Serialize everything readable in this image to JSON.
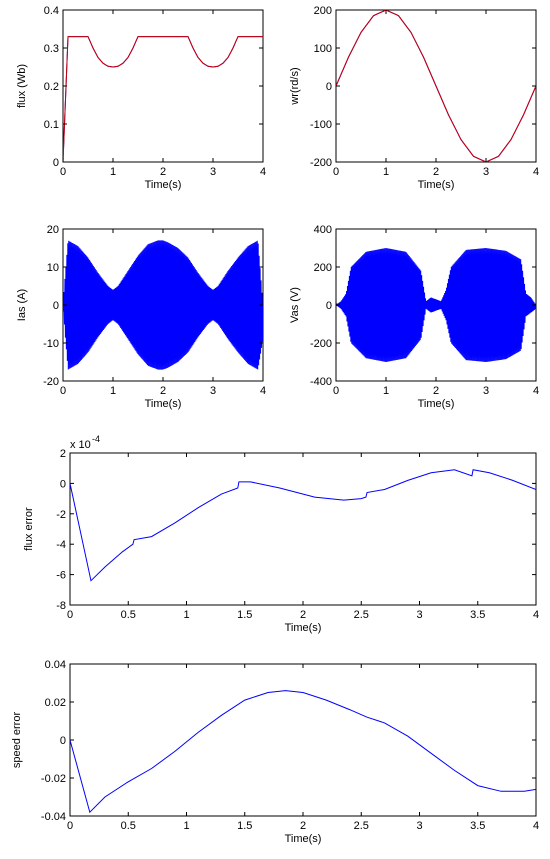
{
  "colors": {
    "blue": "#0000ff",
    "red": "#cc0000",
    "axis": "#000000"
  },
  "chart_data": [
    {
      "id": "flux",
      "type": "line",
      "xlabel": "Time(s)",
      "ylabel": "flux (Wb)",
      "xlim": [
        0,
        4
      ],
      "ylim": [
        0,
        0.4
      ],
      "xticks": [
        0,
        1,
        2,
        3,
        4
      ],
      "xtick_labels": [
        "0",
        "1",
        "2",
        "3",
        "4"
      ],
      "yticks": [
        0,
        0.1,
        0.2,
        0.3,
        0.4
      ],
      "ytick_labels": [
        "0",
        "0.1",
        "0.2",
        "0.3",
        "0.4"
      ],
      "grid": false,
      "series": [
        {
          "color": "blue",
          "x": [
            0,
            0.1,
            0.5,
            0.6,
            0.7,
            0.8,
            0.9,
            1.0,
            1.1,
            1.2,
            1.3,
            1.4,
            1.5,
            2.5,
            2.6,
            2.7,
            2.8,
            2.9,
            3.0,
            3.1,
            3.2,
            3.3,
            3.4,
            3.5,
            4.0
          ],
          "y": [
            0,
            0.33,
            0.33,
            0.3,
            0.275,
            0.26,
            0.252,
            0.25,
            0.252,
            0.26,
            0.275,
            0.3,
            0.33,
            0.33,
            0.3,
            0.275,
            0.26,
            0.252,
            0.25,
            0.252,
            0.26,
            0.275,
            0.3,
            0.33,
            0.33
          ]
        },
        {
          "color": "red",
          "x": [
            0,
            0.1,
            0.5,
            0.6,
            0.7,
            0.8,
            0.9,
            1.0,
            1.1,
            1.2,
            1.3,
            1.4,
            1.5,
            2.5,
            2.6,
            2.7,
            2.8,
            2.9,
            3.0,
            3.1,
            3.2,
            3.3,
            3.4,
            3.5,
            4.0
          ],
          "y": [
            0,
            0.33,
            0.33,
            0.3,
            0.275,
            0.26,
            0.252,
            0.25,
            0.252,
            0.26,
            0.275,
            0.3,
            0.33,
            0.33,
            0.3,
            0.275,
            0.26,
            0.252,
            0.25,
            0.252,
            0.26,
            0.275,
            0.3,
            0.33,
            0.33
          ]
        }
      ]
    },
    {
      "id": "speed",
      "type": "line",
      "xlabel": "Time(s)",
      "ylabel": "wr(rd/s)",
      "xlim": [
        0,
        4
      ],
      "ylim": [
        -200,
        200
      ],
      "xticks": [
        0,
        1,
        2,
        3,
        4
      ],
      "xtick_labels": [
        "0",
        "1",
        "2",
        "3",
        "4"
      ],
      "yticks": [
        -200,
        -100,
        0,
        100,
        200
      ],
      "ytick_labels": [
        "-200",
        "-100",
        "0",
        "100",
        "200"
      ],
      "grid": false,
      "series": [
        {
          "color": "blue",
          "x": [
            0,
            0.25,
            0.5,
            0.75,
            1.0,
            1.25,
            1.5,
            1.75,
            2.0,
            2.25,
            2.5,
            2.75,
            3.0,
            3.25,
            3.5,
            3.75,
            4.0
          ],
          "y": [
            0,
            76,
            141,
            185,
            200,
            185,
            141,
            76,
            0,
            -76,
            -141,
            -185,
            -200,
            -185,
            -141,
            -76,
            0
          ]
        },
        {
          "color": "red",
          "x": [
            0,
            0.25,
            0.5,
            0.75,
            1.0,
            1.25,
            1.5,
            1.75,
            2.0,
            2.25,
            2.5,
            2.75,
            3.0,
            3.25,
            3.5,
            3.75,
            4.0
          ],
          "y": [
            0,
            76,
            141,
            185,
            200,
            185,
            141,
            76,
            0,
            -76,
            -141,
            -185,
            -200,
            -185,
            -141,
            -76,
            0
          ]
        }
      ]
    },
    {
      "id": "current",
      "type": "line",
      "xlabel": "Time(s)",
      "ylabel": "Ias (A)",
      "xlim": [
        0,
        4
      ],
      "ylim": [
        -20,
        20
      ],
      "xticks": [
        0,
        1,
        2,
        3,
        4
      ],
      "xtick_labels": [
        "0",
        "1",
        "2",
        "3",
        "4"
      ],
      "yticks": [
        -20,
        -10,
        0,
        10,
        20
      ],
      "ytick_labels": [
        "-20",
        "-10",
        "0",
        "10",
        "20"
      ],
      "grid": false,
      "envelope": {
        "x": [
          0,
          0.05,
          0.1,
          0.3,
          0.5,
          0.7,
          0.9,
          1.0,
          1.1,
          1.3,
          1.5,
          1.7,
          1.9,
          2.0,
          2.1,
          2.3,
          2.5,
          2.7,
          2.9,
          3.0,
          3.1,
          3.3,
          3.5,
          3.7,
          3.9,
          4.0
        ],
        "upper": [
          0,
          9,
          17,
          15.5,
          12.5,
          8.5,
          5,
          4,
          5,
          9,
          13,
          16,
          17,
          17,
          16.5,
          15,
          12.5,
          8.5,
          5,
          4,
          5,
          9,
          12.5,
          15.5,
          17,
          0
        ],
        "lower": [
          0,
          -9,
          -17,
          -15.5,
          -12.5,
          -8.5,
          -5,
          -4,
          -5,
          -9,
          -13,
          -16,
          -17,
          -17,
          -16.5,
          -15,
          -12.5,
          -8.5,
          -5,
          -4,
          -5,
          -9,
          -12.5,
          -15.5,
          -17,
          -9
        ]
      },
      "series": [
        {
          "color": "blue"
        }
      ]
    },
    {
      "id": "voltage",
      "type": "line",
      "xlabel": "Time(s)",
      "ylabel": "Vas (V)",
      "xlim": [
        0,
        4
      ],
      "ylim": [
        -400,
        400
      ],
      "xticks": [
        0,
        1,
        2,
        3,
        4
      ],
      "xtick_labels": [
        "0",
        "1",
        "2",
        "3",
        "4"
      ],
      "yticks": [
        -400,
        -200,
        0,
        200,
        400
      ],
      "ytick_labels": [
        "-400",
        "-200",
        "0",
        "200",
        "400"
      ],
      "grid": false,
      "envelope": {
        "x": [
          0,
          0.1,
          0.2,
          0.3,
          0.6,
          1.0,
          1.4,
          1.7,
          1.8,
          1.9,
          2.0,
          2.1,
          2.2,
          2.3,
          2.6,
          3.0,
          3.4,
          3.7,
          3.8,
          3.9,
          4.0
        ],
        "upper": [
          0,
          20,
          60,
          200,
          280,
          300,
          280,
          180,
          20,
          40,
          30,
          20,
          80,
          200,
          290,
          300,
          285,
          240,
          60,
          40,
          0
        ],
        "lower": [
          0,
          -20,
          -60,
          -200,
          -280,
          -300,
          -280,
          -180,
          -20,
          -40,
          -30,
          -20,
          -80,
          -200,
          -290,
          -300,
          -285,
          -240,
          -60,
          -40,
          -20
        ]
      },
      "series": [
        {
          "color": "blue"
        }
      ]
    },
    {
      "id": "flux_error",
      "type": "line",
      "xlabel": "Time(s)",
      "ylabel": "flux error",
      "multiplier_label": "x 10",
      "multiplier_exponent": "-4",
      "xlim": [
        0,
        4
      ],
      "ylim": [
        -8,
        2
      ],
      "xticks": [
        0,
        0.5,
        1,
        1.5,
        2,
        2.5,
        3,
        3.5,
        4
      ],
      "xtick_labels": [
        "0",
        "0.5",
        "1",
        "1.5",
        "2",
        "2.5",
        "3",
        "3.5",
        "4"
      ],
      "yticks": [
        -8,
        -6,
        -4,
        -2,
        0,
        2
      ],
      "ytick_labels": [
        "-8",
        "-6",
        "-4",
        "-2",
        "0",
        "2"
      ],
      "grid": false,
      "series": [
        {
          "color": "blue",
          "x": [
            0,
            0.18,
            0.3,
            0.45,
            0.54,
            0.55,
            0.7,
            0.9,
            1.1,
            1.3,
            1.44,
            1.45,
            1.55,
            1.8,
            2.1,
            2.35,
            2.5,
            2.54,
            2.55,
            2.7,
            2.9,
            3.1,
            3.3,
            3.45,
            3.46,
            3.6,
            3.8,
            4.0
          ],
          "y": [
            0,
            -6.4,
            -5.5,
            -4.5,
            -4.0,
            -3.7,
            -3.5,
            -2.6,
            -1.6,
            -0.7,
            -0.3,
            0.1,
            0.1,
            -0.3,
            -0.9,
            -1.1,
            -1.0,
            -0.9,
            -0.6,
            -0.4,
            0.2,
            0.7,
            0.9,
            0.5,
            0.9,
            0.7,
            0.2,
            -0.4
          ]
        }
      ]
    },
    {
      "id": "speed_error",
      "type": "line",
      "xlabel": "Time(s)",
      "ylabel": "speed error",
      "xlim": [
        0,
        4
      ],
      "ylim": [
        -0.04,
        0.04
      ],
      "xticks": [
        0,
        0.5,
        1,
        1.5,
        2,
        2.5,
        3,
        3.5,
        4
      ],
      "xtick_labels": [
        "0",
        "0.5",
        "1",
        "1.5",
        "2",
        "2.5",
        "3",
        "3.5",
        "4"
      ],
      "yticks": [
        -0.04,
        -0.02,
        0,
        0.02,
        0.04
      ],
      "ytick_labels": [
        "-0.04",
        "-0.02",
        "0",
        "0.02",
        "0.04"
      ],
      "grid": false,
      "series": [
        {
          "color": "blue",
          "x": [
            0,
            0.17,
            0.3,
            0.5,
            0.7,
            0.9,
            1.1,
            1.3,
            1.5,
            1.7,
            1.85,
            2.0,
            2.2,
            2.4,
            2.55,
            2.7,
            2.9,
            3.1,
            3.3,
            3.5,
            3.7,
            3.9,
            4.0
          ],
          "y": [
            0,
            -0.038,
            -0.03,
            -0.022,
            -0.015,
            -0.006,
            0.004,
            0.013,
            0.021,
            0.025,
            0.026,
            0.025,
            0.021,
            0.016,
            0.012,
            0.009,
            0.002,
            -0.007,
            -0.016,
            -0.024,
            -0.027,
            -0.027,
            -0.026
          ]
        }
      ]
    }
  ]
}
